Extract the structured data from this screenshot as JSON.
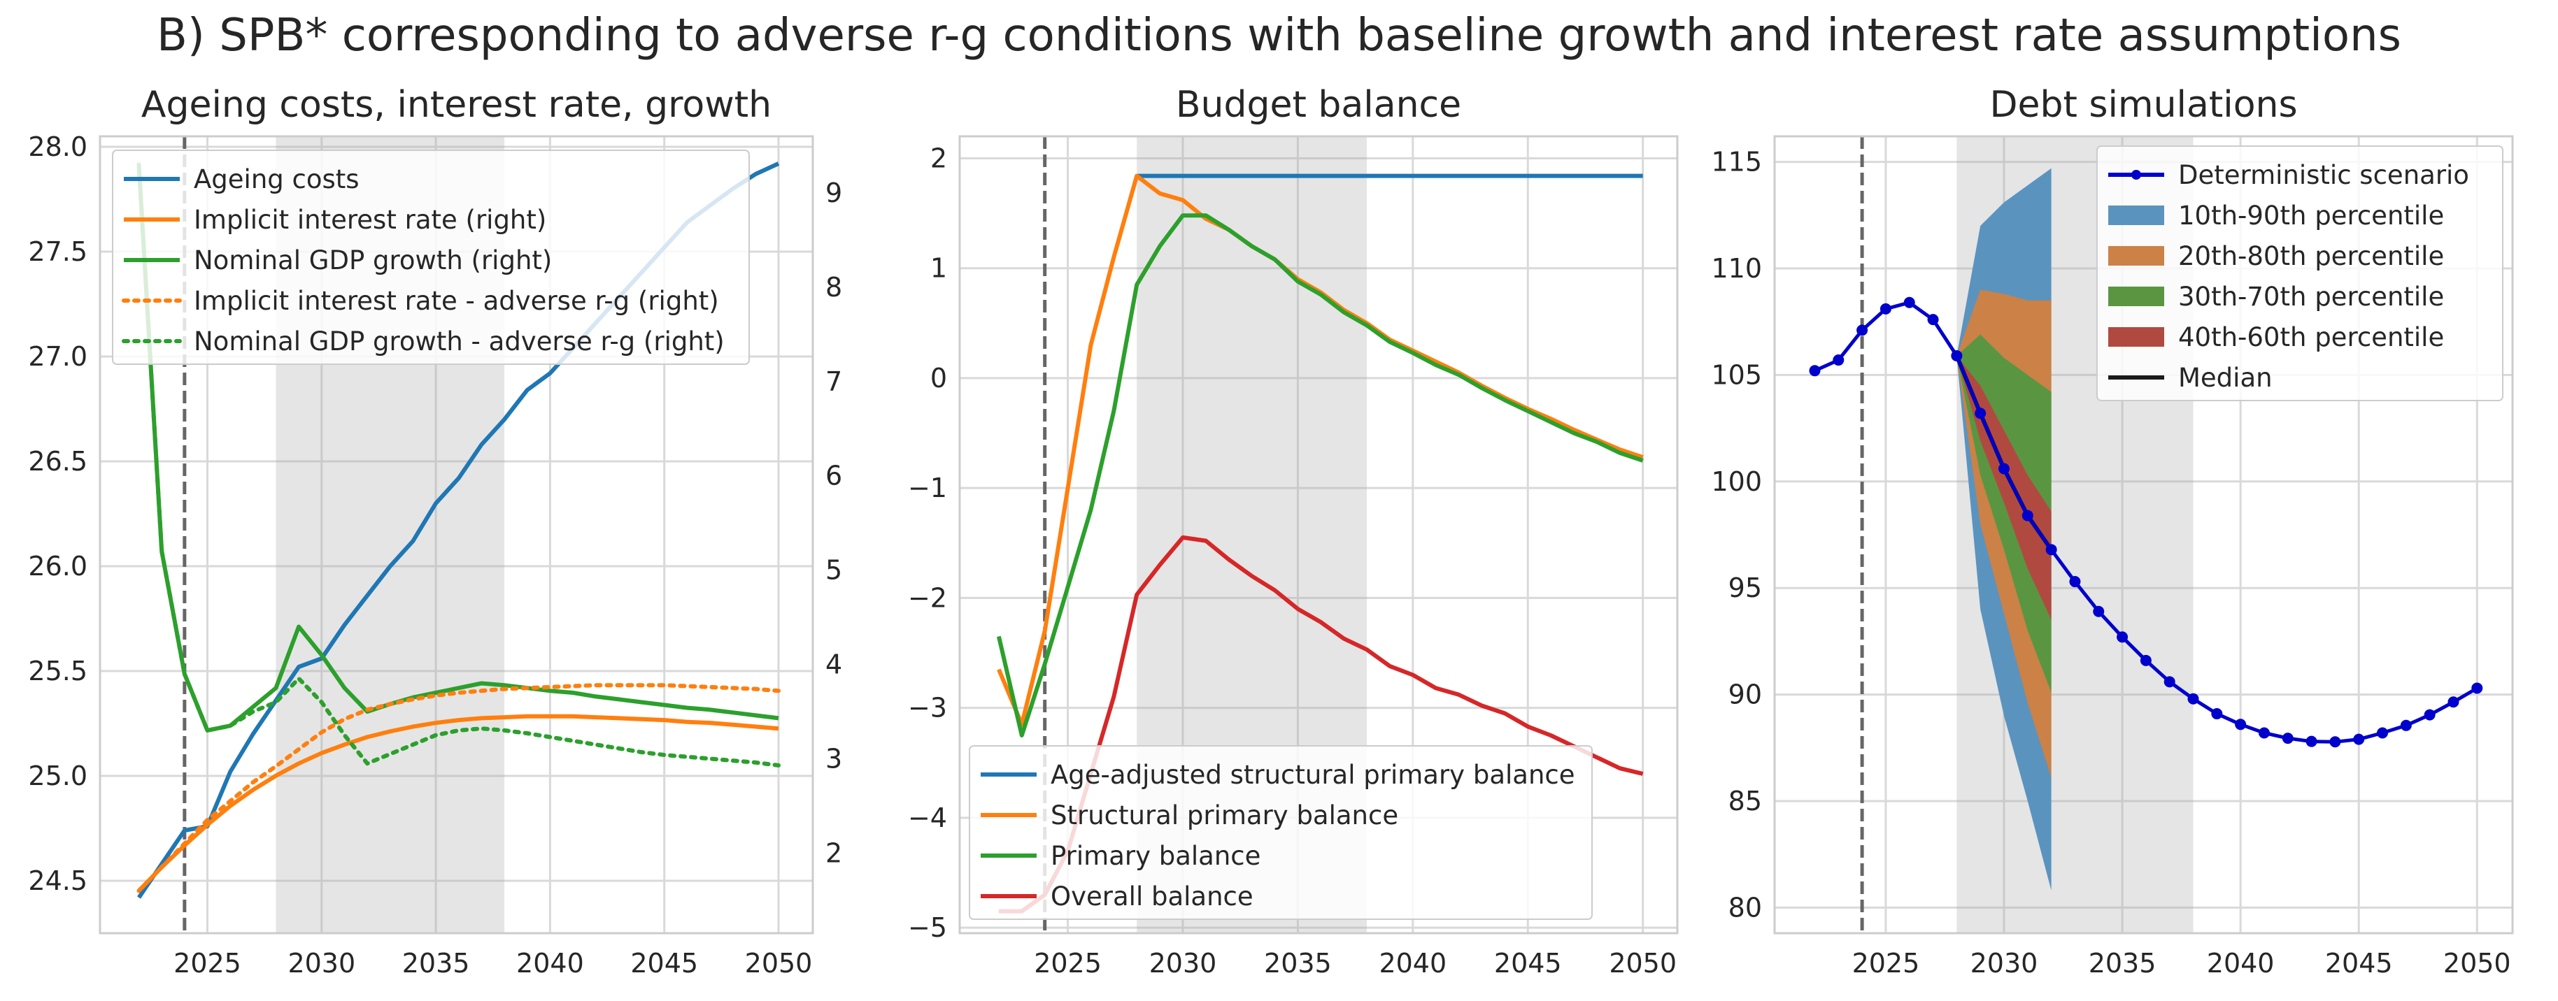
{
  "suptitle": "B) SPB* corresponding to adverse r-g conditions with baseline growth and interest rate assumptions",
  "chart_data": [
    {
      "type": "line",
      "title": "Ageing costs, interest rate, growth",
      "x": [
        2022,
        2023,
        2024,
        2025,
        2026,
        2027,
        2028,
        2029,
        2030,
        2031,
        2032,
        2033,
        2034,
        2035,
        2036,
        2037,
        2038,
        2039,
        2040,
        2041,
        2042,
        2043,
        2044,
        2045,
        2046,
        2047,
        2048,
        2049,
        2050
      ],
      "xlim": [
        2020.3,
        2051.5
      ],
      "xticks": [
        2025,
        2030,
        2035,
        2040,
        2045,
        2050
      ],
      "ylim_left": [
        24.25,
        28.05
      ],
      "yticks_left": [
        "24.5",
        "25.0",
        "25.5",
        "26.0",
        "26.5",
        "27.0",
        "27.5",
        "28.0"
      ],
      "ylim_right": [
        1.15,
        9.6
      ],
      "yticks_right": [
        "2",
        "3",
        "4",
        "5",
        "6",
        "7",
        "8",
        "9"
      ],
      "vline": 2024,
      "shade": [
        2028,
        2038
      ],
      "legend_loc": "upper-left",
      "series": [
        {
          "name": "Ageing costs",
          "axis": "left",
          "color": "#1f77b4",
          "style": "solid",
          "values": [
            24.42,
            24.58,
            24.74,
            24.76,
            25.02,
            25.2,
            25.36,
            25.52,
            25.56,
            25.72,
            25.86,
            26.0,
            26.12,
            26.3,
            26.42,
            26.58,
            26.7,
            26.84,
            26.92,
            27.04,
            27.16,
            27.28,
            27.4,
            27.52,
            27.64,
            27.72,
            27.8,
            27.87,
            27.92
          ]
        },
        {
          "name": "Implicit interest rate (right)",
          "axis": "right",
          "color": "#ff7f0e",
          "style": "solid",
          "values": [
            1.6,
            1.85,
            2.08,
            2.3,
            2.5,
            2.67,
            2.82,
            2.95,
            3.06,
            3.15,
            3.23,
            3.29,
            3.34,
            3.38,
            3.41,
            3.43,
            3.44,
            3.45,
            3.45,
            3.45,
            3.44,
            3.43,
            3.42,
            3.41,
            3.39,
            3.38,
            3.36,
            3.34,
            3.32
          ]
        },
        {
          "name": "Nominal GDP growth (right)",
          "axis": "right",
          "color": "#2ca02c",
          "style": "solid",
          "values": [
            9.3,
            5.2,
            3.9,
            3.3,
            3.35,
            3.55,
            3.75,
            4.4,
            4.1,
            3.75,
            3.5,
            3.58,
            3.65,
            3.7,
            3.75,
            3.8,
            3.78,
            3.75,
            3.72,
            3.7,
            3.66,
            3.63,
            3.6,
            3.57,
            3.54,
            3.52,
            3.49,
            3.46,
            3.43
          ]
        },
        {
          "name": "Implicit interest rate - adverse r-g (right)",
          "axis": "right",
          "color": "#ff7f0e",
          "style": "dotted",
          "values": [
            1.6,
            1.85,
            2.1,
            2.35,
            2.55,
            2.75,
            2.92,
            3.1,
            3.28,
            3.42,
            3.52,
            3.58,
            3.63,
            3.67,
            3.7,
            3.72,
            3.74,
            3.75,
            3.76,
            3.77,
            3.78,
            3.78,
            3.78,
            3.78,
            3.77,
            3.76,
            3.75,
            3.74,
            3.72
          ]
        },
        {
          "name": "Nominal GDP growth - adverse r-g (right)",
          "axis": "right",
          "color": "#2ca02c",
          "style": "dotted",
          "values": [
            9.3,
            5.2,
            3.9,
            3.3,
            3.35,
            3.5,
            3.6,
            3.85,
            3.6,
            3.25,
            2.95,
            3.05,
            3.15,
            3.25,
            3.3,
            3.32,
            3.3,
            3.27,
            3.23,
            3.19,
            3.15,
            3.11,
            3.07,
            3.04,
            3.02,
            3.0,
            2.98,
            2.96,
            2.93
          ]
        }
      ]
    },
    {
      "type": "line",
      "title": "Budget balance",
      "x": [
        2022,
        2023,
        2024,
        2025,
        2026,
        2027,
        2028,
        2029,
        2030,
        2031,
        2032,
        2033,
        2034,
        2035,
        2036,
        2037,
        2038,
        2039,
        2040,
        2041,
        2042,
        2043,
        2044,
        2045,
        2046,
        2047,
        2048,
        2049,
        2050
      ],
      "xlim": [
        2020.3,
        2051.5
      ],
      "xticks": [
        2025,
        2030,
        2035,
        2040,
        2045,
        2050
      ],
      "ylim": [
        -5.05,
        2.2
      ],
      "yticks": [
        "−5",
        "−4",
        "−3",
        "−2",
        "−1",
        "0",
        "1",
        "2"
      ],
      "vline": 2024,
      "shade": [
        2028,
        2038
      ],
      "legend_loc": "lower-left",
      "series": [
        {
          "name": "Age-adjusted structural primary balance",
          "color": "#1f77b4",
          "style": "solid",
          "values": [
            null,
            null,
            null,
            null,
            null,
            null,
            1.84,
            1.84,
            1.84,
            1.84,
            1.84,
            1.84,
            1.84,
            1.84,
            1.84,
            1.84,
            1.84,
            1.84,
            1.84,
            1.84,
            1.84,
            1.84,
            1.84,
            1.84,
            1.84,
            1.84,
            1.84,
            1.84,
            1.84
          ]
        },
        {
          "name": "Structural primary balance",
          "color": "#ff7f0e",
          "style": "solid",
          "values": [
            -2.65,
            -3.15,
            -2.3,
            -1.0,
            0.3,
            1.1,
            1.84,
            1.68,
            1.62,
            1.45,
            1.35,
            1.2,
            1.08,
            0.9,
            0.78,
            0.62,
            0.5,
            0.35,
            0.25,
            0.15,
            0.05,
            -0.07,
            -0.18,
            -0.28,
            -0.37,
            -0.47,
            -0.56,
            -0.65,
            -0.72
          ]
        },
        {
          "name": "Primary balance",
          "color": "#2ca02c",
          "style": "solid",
          "values": [
            -2.35,
            -3.25,
            -2.6,
            -1.9,
            -1.2,
            -0.3,
            0.85,
            1.2,
            1.48,
            1.48,
            1.35,
            1.2,
            1.08,
            0.88,
            0.76,
            0.6,
            0.48,
            0.33,
            0.23,
            0.12,
            0.03,
            -0.09,
            -0.2,
            -0.3,
            -0.4,
            -0.5,
            -0.58,
            -0.68,
            -0.75
          ]
        },
        {
          "name": "Overall balance",
          "color": "#d62728",
          "style": "solid",
          "values": [
            -4.85,
            -4.85,
            -4.7,
            -4.3,
            -3.6,
            -2.9,
            -1.97,
            -1.7,
            -1.45,
            -1.48,
            -1.65,
            -1.8,
            -1.93,
            -2.1,
            -2.22,
            -2.37,
            -2.47,
            -2.62,
            -2.7,
            -2.82,
            -2.88,
            -2.98,
            -3.05,
            -3.17,
            -3.25,
            -3.35,
            -3.45,
            -3.55,
            -3.6
          ]
        }
      ]
    },
    {
      "type": "area",
      "title": "Debt simulations",
      "x": [
        2022,
        2023,
        2024,
        2025,
        2026,
        2027,
        2028,
        2029,
        2030,
        2031,
        2032,
        2033,
        2034,
        2035,
        2036,
        2037,
        2038,
        2039,
        2040,
        2041,
        2042,
        2043,
        2044,
        2045,
        2046,
        2047,
        2048,
        2049,
        2050
      ],
      "xlim": [
        2020.3,
        2051.5
      ],
      "xticks": [
        2025,
        2030,
        2035,
        2040,
        2045,
        2050
      ],
      "ylim": [
        78.8,
        116.2
      ],
      "yticks": [
        "80",
        "85",
        "90",
        "95",
        "100",
        "105",
        "110",
        "115"
      ],
      "vline": 2024,
      "shade": [
        2028,
        2038
      ],
      "legend_loc": "upper-right",
      "fan_x": [
        2028,
        2029,
        2030,
        2031,
        2032
      ],
      "fan_bands": [
        {
          "name": "10th-90th percentile",
          "color": "#5b93bf",
          "upper": [
            105.9,
            112.0,
            113.1,
            113.9,
            114.7
          ],
          "lower": [
            105.9,
            94.0,
            89.0,
            85.0,
            80.8
          ]
        },
        {
          "name": "20th-80th percentile",
          "color": "#cc8146",
          "upper": [
            105.9,
            109.0,
            108.8,
            108.5,
            108.5
          ],
          "lower": [
            105.9,
            98.0,
            93.8,
            89.6,
            86.1
          ]
        },
        {
          "name": "30th-70th percentile",
          "color": "#5a9641",
          "upper": [
            105.9,
            106.9,
            105.8,
            105.0,
            104.2
          ],
          "lower": [
            105.9,
            100.3,
            96.8,
            93.0,
            90.1
          ]
        },
        {
          "name": "40th-60th percentile",
          "color": "#b04a41",
          "upper": [
            105.9,
            104.5,
            102.4,
            100.3,
            98.6
          ],
          "lower": [
            105.9,
            101.9,
            99.0,
            95.9,
            93.5
          ]
        }
      ],
      "median": {
        "name": "Median",
        "color": "#1a1a1a",
        "values": [
          105.9,
          103.2,
          100.6,
          98.4,
          96.8
        ]
      },
      "deterministic": {
        "name": "Deterministic scenario",
        "color": "#0000cc",
        "values": [
          105.2,
          105.7,
          107.1,
          108.1,
          108.4,
          107.6,
          105.9,
          103.2,
          100.6,
          98.4,
          96.8,
          95.3,
          93.9,
          92.7,
          91.6,
          90.6,
          89.8,
          89.1,
          88.6,
          88.2,
          87.95,
          87.8,
          87.78,
          87.9,
          88.2,
          88.55,
          89.05,
          89.65,
          90.3
        ]
      }
    }
  ]
}
